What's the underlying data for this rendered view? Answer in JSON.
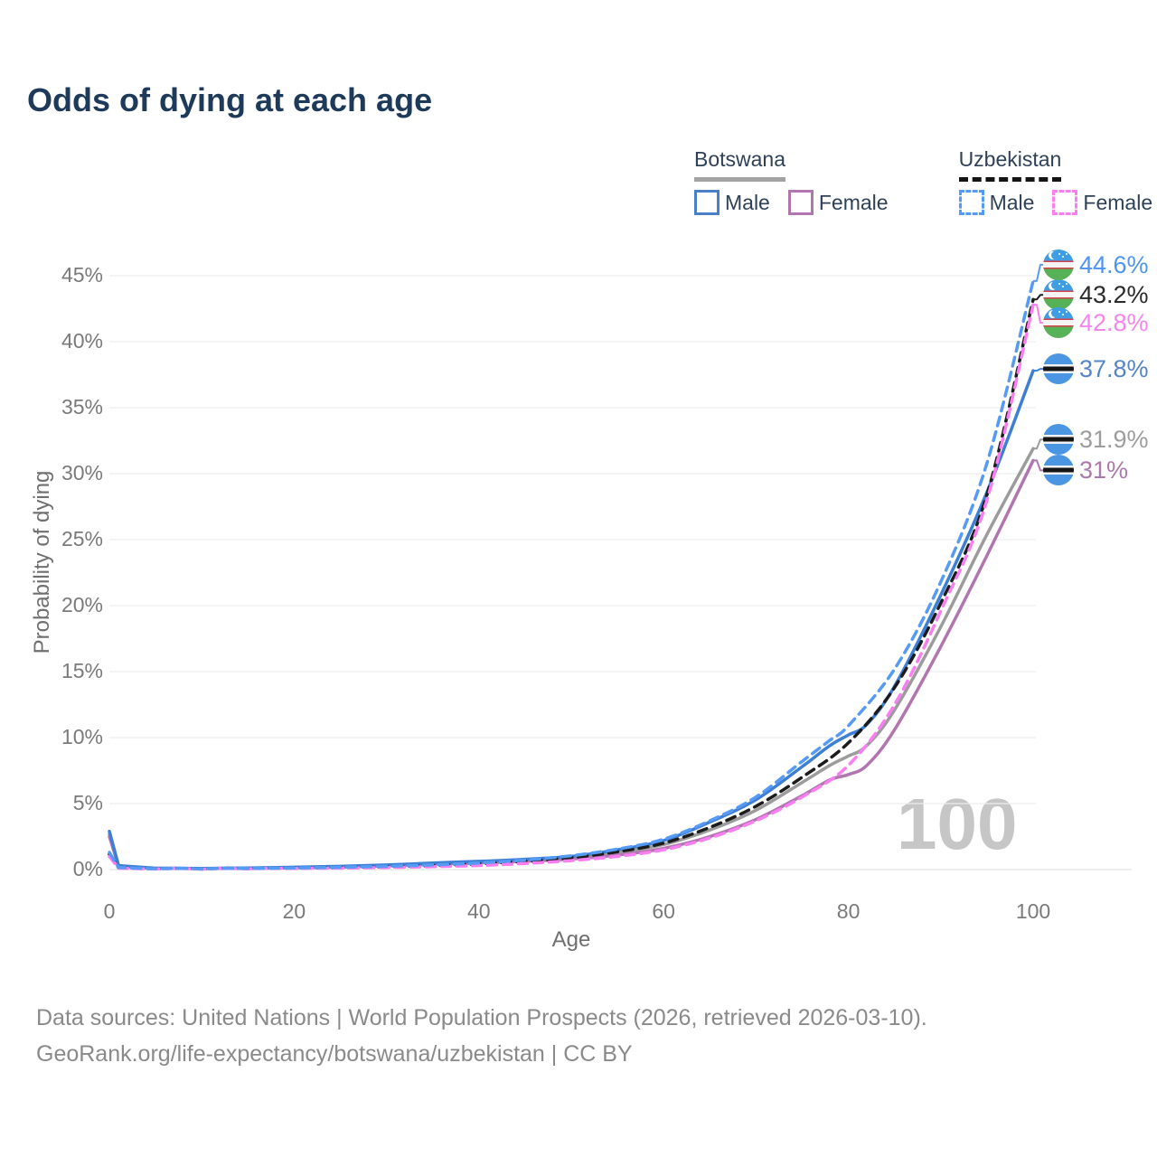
{
  "title": "Odds of dying at each age",
  "watermark": "100",
  "legend": {
    "botswana": {
      "label": "Botswana",
      "male": "Male",
      "female": "Female"
    },
    "uzbekistan": {
      "label": "Uzbekistan",
      "male": "Male",
      "female": "Female"
    }
  },
  "footer": {
    "line1": "Data sources: United Nations | World Population Prospects (2026, retrieved 2026-03-10).",
    "line2": "GeoRank.org/life-expectancy/botswana/uzbekistan | CC BY"
  },
  "colors": {
    "title_text": "#1e3a5a",
    "legend_text": "#2e4157",
    "axis_text": "#7a7a7a",
    "grid_line": "#ededed",
    "watermark": "#c6c6c6",
    "footer_text": "#8a8a8a",
    "botswana_underline": "#a3a3a3",
    "uzbekistan_underline": "#141414"
  },
  "chart_data": {
    "type": "line",
    "title": "Odds of dying at each age",
    "xlabel": "Age",
    "ylabel": "Probability of dying",
    "xlim": [
      0,
      100
    ],
    "ylim_percent": [
      0,
      46
    ],
    "x_ticks": [
      "0",
      "20",
      "40",
      "60",
      "80",
      "100"
    ],
    "y_ticks": [
      "0%",
      "5%",
      "10%",
      "15%",
      "20%",
      "25%",
      "30%",
      "35%",
      "40%",
      "45%"
    ],
    "grid": true,
    "legend_position": "top-right",
    "series": [
      {
        "name": "Botswana",
        "country": "Botswana",
        "sex": "both",
        "line_style": "solid",
        "color": "#9c9c9c",
        "label_color": "#9d9d9d",
        "flag": "bw",
        "end_label": "31.9%",
        "points": [
          [
            0,
            2.7
          ],
          [
            1,
            0.28
          ],
          [
            5,
            0.09
          ],
          [
            10,
            0.07
          ],
          [
            15,
            0.1
          ],
          [
            20,
            0.15
          ],
          [
            25,
            0.21
          ],
          [
            30,
            0.31
          ],
          [
            35,
            0.45
          ],
          [
            40,
            0.56
          ],
          [
            45,
            0.7
          ],
          [
            50,
            0.9
          ],
          [
            55,
            1.3
          ],
          [
            60,
            1.9
          ],
          [
            65,
            3.0
          ],
          [
            70,
            4.5
          ],
          [
            75,
            6.6
          ],
          [
            78,
            7.9
          ],
          [
            80,
            8.6
          ],
          [
            82,
            9.4
          ],
          [
            85,
            12.1
          ],
          [
            90,
            18.4
          ],
          [
            95,
            25.4
          ],
          [
            100,
            31.9
          ]
        ]
      },
      {
        "name": "Botswana Female",
        "country": "Botswana",
        "sex": "female",
        "line_style": "solid",
        "color": "#b176af",
        "label_color": "#ab79ab",
        "flag": "bw",
        "end_label": "31%",
        "points": [
          [
            0,
            2.5
          ],
          [
            1,
            0.25
          ],
          [
            5,
            0.08
          ],
          [
            10,
            0.06
          ],
          [
            15,
            0.09
          ],
          [
            20,
            0.13
          ],
          [
            25,
            0.18
          ],
          [
            30,
            0.28
          ],
          [
            35,
            0.4
          ],
          [
            40,
            0.5
          ],
          [
            45,
            0.62
          ],
          [
            50,
            0.8
          ],
          [
            55,
            1.1
          ],
          [
            60,
            1.6
          ],
          [
            65,
            2.5
          ],
          [
            70,
            3.8
          ],
          [
            75,
            5.6
          ],
          [
            78,
            6.8
          ],
          [
            80,
            7.2
          ],
          [
            82,
            7.9
          ],
          [
            85,
            10.6
          ],
          [
            90,
            16.9
          ],
          [
            95,
            23.8
          ],
          [
            100,
            31.0
          ]
        ]
      },
      {
        "name": "Botswana Male",
        "country": "Botswana",
        "sex": "male",
        "line_style": "solid",
        "color": "#3e7fd6",
        "label_color": "#5585c8",
        "flag": "bw",
        "end_label": "37.8%",
        "points": [
          [
            0,
            2.9
          ],
          [
            1,
            0.3
          ],
          [
            5,
            0.1
          ],
          [
            10,
            0.08
          ],
          [
            15,
            0.12
          ],
          [
            20,
            0.18
          ],
          [
            25,
            0.25
          ],
          [
            30,
            0.35
          ],
          [
            35,
            0.5
          ],
          [
            40,
            0.62
          ],
          [
            45,
            0.78
          ],
          [
            50,
            1.0
          ],
          [
            55,
            1.5
          ],
          [
            60,
            2.2
          ],
          [
            65,
            3.6
          ],
          [
            70,
            5.3
          ],
          [
            75,
            7.8
          ],
          [
            78,
            9.4
          ],
          [
            80,
            10.2
          ],
          [
            82,
            11.0
          ],
          [
            85,
            13.9
          ],
          [
            90,
            20.8
          ],
          [
            95,
            28.6
          ],
          [
            100,
            37.8
          ]
        ]
      },
      {
        "name": "Uzbekistan",
        "country": "Uzbekistan",
        "sex": "both",
        "line_style": "dashed",
        "color": "#1c1c1c",
        "label_color": "#2a2a2a",
        "flag": "uz",
        "end_label": "43.2%",
        "points": [
          [
            0,
            1.15
          ],
          [
            1,
            0.13
          ],
          [
            5,
            0.05
          ],
          [
            10,
            0.04
          ],
          [
            15,
            0.07
          ],
          [
            20,
            0.1
          ],
          [
            25,
            0.15
          ],
          [
            30,
            0.21
          ],
          [
            35,
            0.3
          ],
          [
            40,
            0.43
          ],
          [
            45,
            0.62
          ],
          [
            50,
            0.9
          ],
          [
            55,
            1.35
          ],
          [
            60,
            2.0
          ],
          [
            65,
            3.2
          ],
          [
            70,
            4.8
          ],
          [
            75,
            7.0
          ],
          [
            80,
            9.6
          ],
          [
            85,
            13.8
          ],
          [
            90,
            20.2
          ],
          [
            95,
            28.4
          ],
          [
            100,
            43.2
          ]
        ]
      },
      {
        "name": "Uzbekistan Female",
        "country": "Uzbekistan",
        "sex": "female",
        "line_style": "dashed",
        "color": "#fa7df1",
        "label_color": "#f884ee",
        "flag": "uz",
        "end_label": "42.8%",
        "points": [
          [
            0,
            1.0
          ],
          [
            1,
            0.1
          ],
          [
            5,
            0.04
          ],
          [
            10,
            0.03
          ],
          [
            15,
            0.05
          ],
          [
            20,
            0.08
          ],
          [
            25,
            0.11
          ],
          [
            30,
            0.16
          ],
          [
            35,
            0.22
          ],
          [
            40,
            0.31
          ],
          [
            45,
            0.46
          ],
          [
            50,
            0.68
          ],
          [
            55,
            1.0
          ],
          [
            60,
            1.5
          ],
          [
            65,
            2.4
          ],
          [
            70,
            3.7
          ],
          [
            75,
            5.5
          ],
          [
            80,
            7.9
          ],
          [
            85,
            12.5
          ],
          [
            90,
            19.6
          ],
          [
            95,
            28.0
          ],
          [
            100,
            42.8
          ]
        ]
      },
      {
        "name": "Uzbekistan Male",
        "country": "Uzbekistan",
        "sex": "male",
        "line_style": "dashed",
        "color": "#559bf5",
        "label_color": "#4c95f2",
        "flag": "uz",
        "end_label": "44.6%",
        "points": [
          [
            0,
            1.3
          ],
          [
            1,
            0.15
          ],
          [
            5,
            0.06
          ],
          [
            10,
            0.05
          ],
          [
            15,
            0.08
          ],
          [
            20,
            0.12
          ],
          [
            25,
            0.18
          ],
          [
            30,
            0.25
          ],
          [
            35,
            0.35
          ],
          [
            40,
            0.5
          ],
          [
            45,
            0.72
          ],
          [
            50,
            1.05
          ],
          [
            55,
            1.55
          ],
          [
            60,
            2.3
          ],
          [
            65,
            3.7
          ],
          [
            70,
            5.5
          ],
          [
            75,
            8.2
          ],
          [
            78,
            9.8
          ],
          [
            80,
            10.9
          ],
          [
            85,
            15.2
          ],
          [
            90,
            21.8
          ],
          [
            95,
            30.8
          ],
          [
            100,
            44.6
          ]
        ]
      }
    ]
  }
}
